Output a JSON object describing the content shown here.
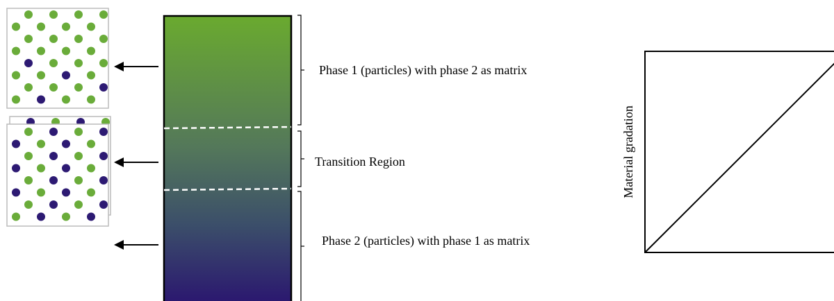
{
  "regions": [
    {
      "label": "Phase 1 (particles) with phase 2 as matrix"
    },
    {
      "label": "Transition Region"
    },
    {
      "label": "Phase 2 (particles) with phase 1 as matrix"
    }
  ],
  "plot": {
    "ylabel": "Material gradation"
  },
  "colors": {
    "phase1": "#6aac3a",
    "phase2": "#2d1a73",
    "gradient_top": "#6aaa2f",
    "gradient_mid": "#4a6e60",
    "gradient_bottom": "#2a1470",
    "border": "#000000",
    "divider": "#ffffff",
    "panel_border": "#bbbbbb"
  }
}
